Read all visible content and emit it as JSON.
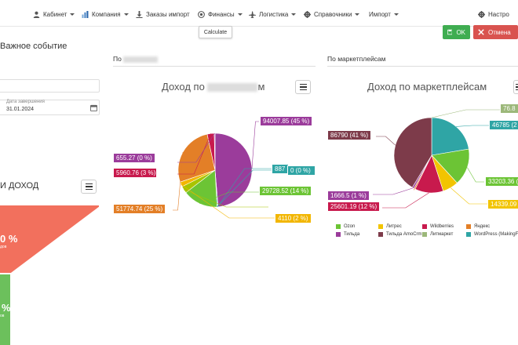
{
  "nav": {
    "items": [
      {
        "name": "nav-cabinet",
        "icon": "user-icon",
        "label": "Кабинет",
        "caret": true
      },
      {
        "name": "nav-company",
        "icon": "bar-chart-icon",
        "label": "Компания",
        "caret": true
      },
      {
        "name": "nav-orders-import",
        "icon": "download-icon",
        "label": "Заказы импорт",
        "caret": false
      },
      {
        "name": "nav-finance",
        "icon": "coin-icon",
        "label": "Финансы",
        "caret": true
      },
      {
        "name": "nav-logistics",
        "icon": "plane-icon",
        "label": "Логистика",
        "caret": true
      },
      {
        "name": "nav-references",
        "icon": "gear-icon",
        "label": "Справочники",
        "caret": true
      },
      {
        "name": "nav-import",
        "icon": "",
        "label": "Импорт",
        "caret": true
      },
      {
        "name": "nav-settings",
        "icon": "gear-icon",
        "label": "Настро",
        "caret": false
      }
    ]
  },
  "tooltip": {
    "text": "Calculate"
  },
  "actions": {
    "ok_label": "OK",
    "cancel_label": "Отмена"
  },
  "left": {
    "event_title": "Важное событие",
    "end_date_label": "Дата завершения",
    "end_date_value": "31.01.2024",
    "income_title": "и доход",
    "funnel_top_value": "0 %",
    "funnel_top_sub": "дов",
    "funnel_bottom_value": "%",
    "funnel_bottom_sub": "ов"
  },
  "middle": {
    "section_title": "По",
    "chart_title_prefix": "Доход по",
    "chart_title_suffix": "м"
  },
  "right": {
    "section_title": "По маркетплейсам",
    "chart_title": "Доход по маркетплейсам"
  },
  "chart_data": [
    {
      "type": "pie",
      "title": "Доход по ... м",
      "slices": [
        {
          "label": "94007.85 (45 %)",
          "value": 94007.85,
          "percent": 45,
          "color": "#9b3c9b"
        },
        {
          "label": "887",
          "value": 887,
          "percent": 0,
          "color": "#2fa5a5"
        },
        {
          "label": "0 (0 %)",
          "value": 0,
          "percent": 0,
          "color": "#2fa5a5"
        },
        {
          "label": "29728.52 (14 %)",
          "value": 29728.52,
          "percent": 14,
          "color": "#6cc435"
        },
        {
          "label": "",
          "value": 6000,
          "percent": 3,
          "color": "#a8c400"
        },
        {
          "label": "4110 (2 %)",
          "value": 4110,
          "percent": 2,
          "color": "#f2b600"
        },
        {
          "label": "51774.74 (25 %)",
          "value": 51774.74,
          "percent": 25,
          "color": "#e37f27"
        },
        {
          "label": "5960.76 (3 %)",
          "value": 5960.76,
          "percent": 3,
          "color": "#c81a4d"
        },
        {
          "label": "655.27 (0 %)",
          "value": 655.27,
          "percent": 0,
          "color": "#9b3c9b"
        }
      ]
    },
    {
      "type": "pie",
      "title": "Доход по маркетплейсам",
      "slices": [
        {
          "label": "76.8",
          "value": 76.8,
          "percent": 0,
          "color": "#9cb87a"
        },
        {
          "label": "46785 (2",
          "value": 46785,
          "percent": 22,
          "color": "#2fa5a5"
        },
        {
          "label": "33203.36 (",
          "value": 33203.36,
          "percent": 16,
          "color": "#6cc435"
        },
        {
          "label": "14339.09",
          "value": 14339.09,
          "percent": 7,
          "color": "#f2c400"
        },
        {
          "label": "25601.19 (12 %)",
          "value": 25601.19,
          "percent": 12,
          "color": "#c81a4d"
        },
        {
          "label": "",
          "value": 1200,
          "percent": 1,
          "color": "#e37f27"
        },
        {
          "label": "1666.5 (1 %)",
          "value": 1666.5,
          "percent": 1,
          "color": "#9b3c9b"
        },
        {
          "label": "86790 (41 %)",
          "value": 86790,
          "percent": 41,
          "color": "#7d3b4a"
        }
      ],
      "legend": [
        {
          "label": "Ozon",
          "color": "#6cc435"
        },
        {
          "label": "Литрес",
          "color": "#f2c400"
        },
        {
          "label": "Wildberries",
          "color": "#c81a4d"
        },
        {
          "label": "Яндекс",
          "color": "#e37f27"
        },
        {
          "label": "Тильда",
          "color": "#9b3c9b"
        },
        {
          "label": "Тильда AmoCrm",
          "color": "#7d3b4a"
        },
        {
          "label": "Литмаркет",
          "color": "#9cb87a"
        },
        {
          "label": "WordPress (MakingF",
          "color": "#2fa5a5"
        }
      ]
    }
  ]
}
